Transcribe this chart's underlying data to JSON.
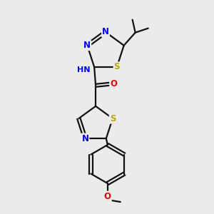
{
  "background_color": "#ebebeb",
  "atom_colors": {
    "N": "#0000ee",
    "S": "#bbaa00",
    "O": "#ee0000",
    "C": "#000000",
    "H": "#448888"
  },
  "bond_color": "#111111",
  "font_size_atom": 8.5,
  "fig_size": [
    3.0,
    3.0
  ],
  "dpi": 100
}
